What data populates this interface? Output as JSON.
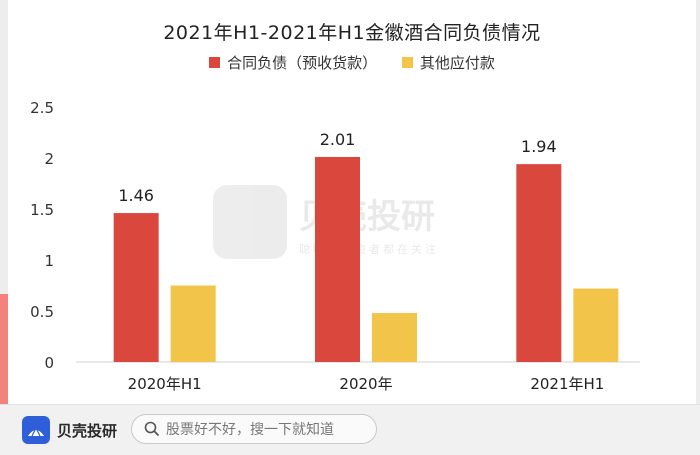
{
  "chart_data": {
    "type": "bar",
    "title": "2021年H1-2021年H1金徽酒合同负债情况",
    "categories": [
      "2020年H1",
      "2020年",
      "2021年H1"
    ],
    "series": [
      {
        "name": "合同负债（预收货款）",
        "values": [
          1.46,
          2.01,
          1.94
        ],
        "color": "#d9473d",
        "labels": [
          "1.46",
          "2.01",
          "1.94"
        ]
      },
      {
        "name": "其他应付款",
        "values": [
          0.75,
          0.48,
          0.72
        ],
        "color": "#f3c44a"
      }
    ],
    "ylim": [
      0,
      2.5
    ],
    "yticks": [
      "0",
      "0.5",
      "1",
      "1.5",
      "2",
      "2.5"
    ],
    "ytick_values": [
      0,
      0.5,
      1,
      1.5,
      2,
      2.5
    ],
    "xlabel": "",
    "ylabel": "",
    "legend_position": "top",
    "grid": false
  },
  "watermark": {
    "brand": "贝壳投研",
    "tagline": "聪明的投资者都在关注"
  },
  "footer": {
    "brand_name": "贝壳投研",
    "search_placeholder": "股票好不好，搜一下就知道",
    "icons": [
      "brand-logo-icon",
      "search-icon"
    ]
  }
}
